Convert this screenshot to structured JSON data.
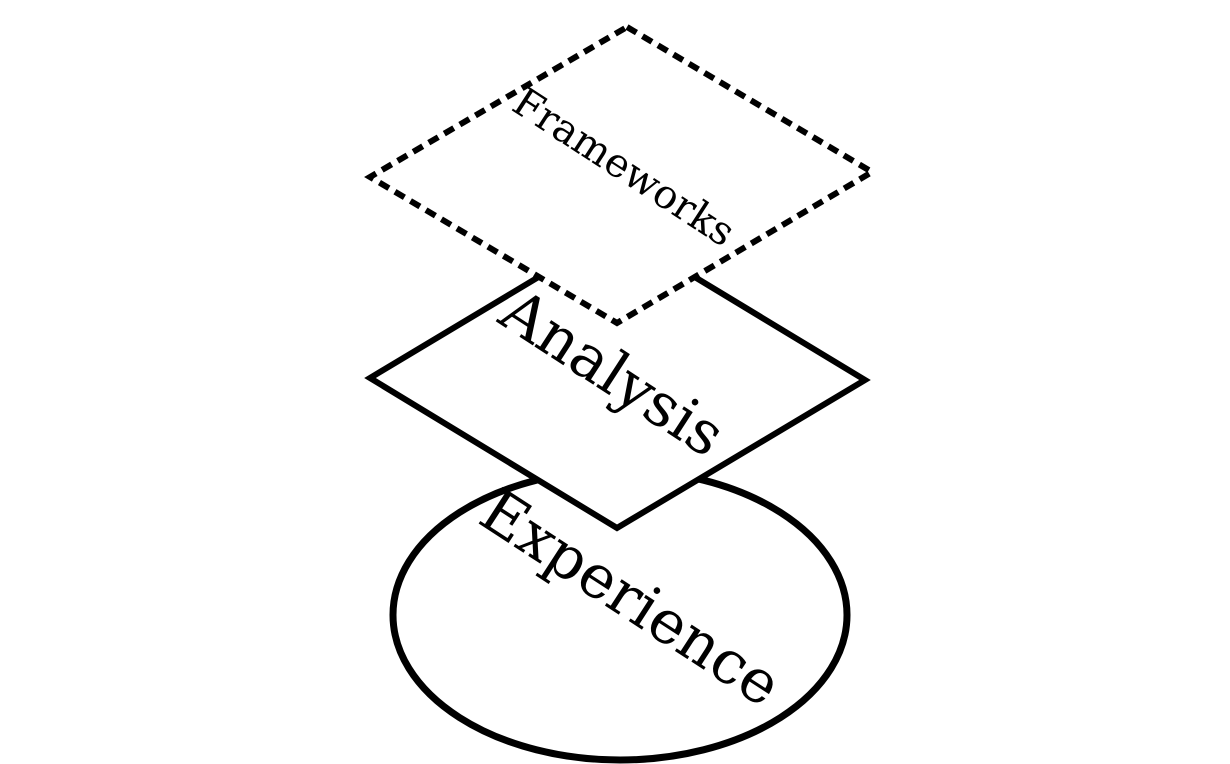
{
  "diagram": {
    "layers": [
      {
        "id": "experience",
        "label": "Experience",
        "shape": "ellipse",
        "border": "solid"
      },
      {
        "id": "analysis",
        "label": "Analysis",
        "shape": "diamond",
        "border": "solid"
      },
      {
        "id": "frameworks",
        "label": "Frameworks",
        "shape": "diamond",
        "border": "dashed"
      }
    ],
    "colors": {
      "stroke": "#000000",
      "fill": "#ffffff",
      "background": "#ffffff"
    }
  }
}
